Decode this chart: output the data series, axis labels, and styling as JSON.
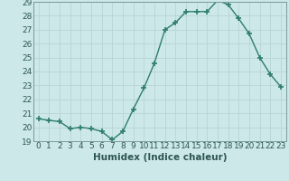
{
  "x": [
    0,
    1,
    2,
    3,
    4,
    5,
    6,
    7,
    8,
    9,
    10,
    11,
    12,
    13,
    14,
    15,
    16,
    17,
    18,
    19,
    20,
    21,
    22,
    23
  ],
  "y": [
    20.6,
    20.5,
    20.4,
    19.9,
    20.0,
    19.9,
    19.7,
    19.1,
    19.7,
    21.3,
    22.8,
    24.6,
    27.0,
    27.5,
    28.3,
    28.3,
    28.3,
    29.1,
    28.8,
    27.8,
    26.7,
    25.0,
    23.8,
    22.9
  ],
  "line_color": "#2e7d6e",
  "marker": "+",
  "marker_size": 4,
  "marker_lw": 1.2,
  "bg_color": "#cce8e8",
  "grid_color": "#b8d4d4",
  "xlabel": "Humidex (Indice chaleur)",
  "ylim": [
    19,
    29
  ],
  "xlim": [
    -0.5,
    23.5
  ],
  "yticks": [
    19,
    20,
    21,
    22,
    23,
    24,
    25,
    26,
    27,
    28,
    29
  ],
  "xticks": [
    0,
    1,
    2,
    3,
    4,
    5,
    6,
    7,
    8,
    9,
    10,
    11,
    12,
    13,
    14,
    15,
    16,
    17,
    18,
    19,
    20,
    21,
    22,
    23
  ],
  "tick_label_fontsize": 6.5,
  "xlabel_fontsize": 7.5,
  "spine_color": "#7a9a9a",
  "tick_color": "#2e5555"
}
